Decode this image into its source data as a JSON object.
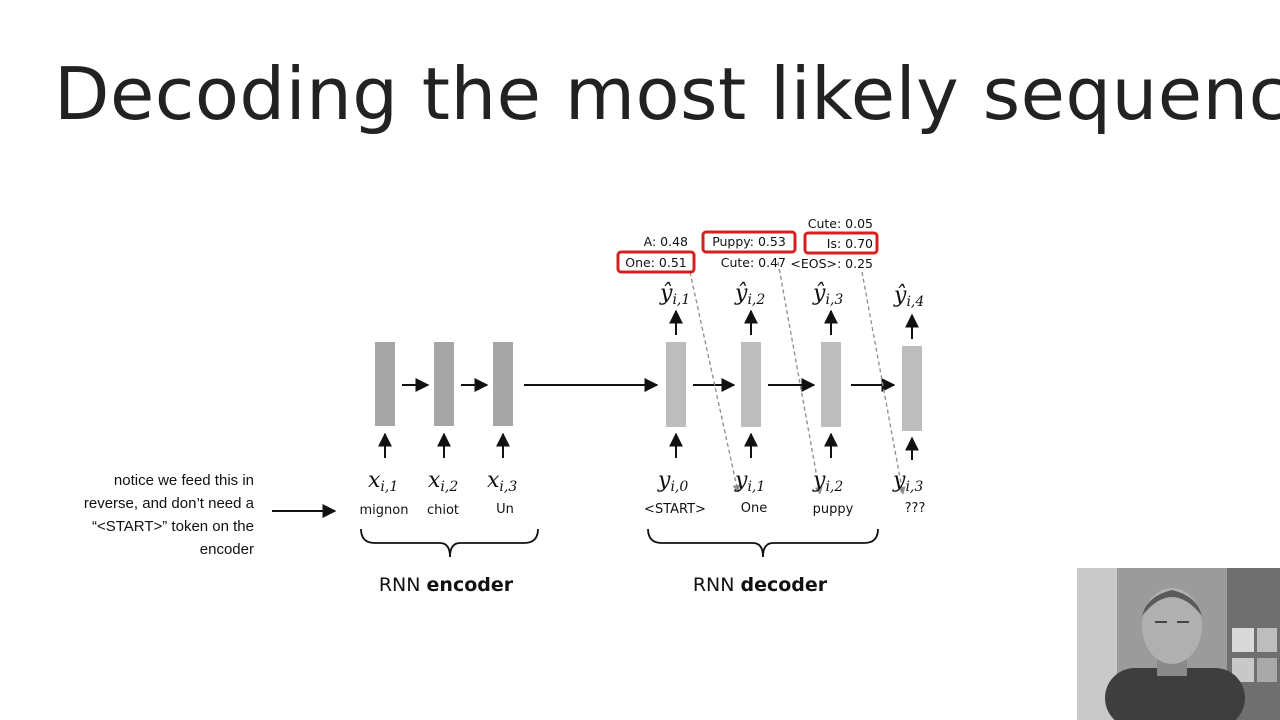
{
  "slide": {
    "title": "Decoding the most likely sequence",
    "note": "notice we feed this in reverse, and don’t need a “<START>” token on the encoder"
  },
  "encoder": {
    "label_plain": "RNN ",
    "label_bold": "encoder",
    "inputs": [
      {
        "var": "x",
        "sub": "i,1",
        "word": "mignon"
      },
      {
        "var": "x",
        "sub": "i,2",
        "word": "chiot"
      },
      {
        "var": "x",
        "sub": "i,3",
        "word": "Un"
      }
    ]
  },
  "decoder": {
    "label_plain": "RNN ",
    "label_bold": "decoder",
    "inputs": [
      {
        "var": "y",
        "sub": "i,0",
        "word": "<START>"
      },
      {
        "var": "y",
        "sub": "i,1",
        "word": "One"
      },
      {
        "var": "y",
        "sub": "i,2",
        "word": "puppy"
      },
      {
        "var": "y",
        "sub": "i,3",
        "word": "???"
      }
    ],
    "outputs": [
      {
        "var": "ŷ",
        "sub": "i,1"
      },
      {
        "var": "ŷ",
        "sub": "i,2"
      },
      {
        "var": "ŷ",
        "sub": "i,3"
      },
      {
        "var": "ŷ",
        "sub": "i,4"
      }
    ],
    "candidates": [
      {
        "text": "A: 0.48",
        "selected": false
      },
      {
        "text": "One: 0.51",
        "selected": true
      },
      {
        "text": "Puppy: 0.53",
        "selected": true
      },
      {
        "text": "Cute: 0.47",
        "selected": false
      },
      {
        "text": "Cute: 0.05",
        "selected": false
      },
      {
        "text": "Is: 0.70",
        "selected": true
      },
      {
        "text": "<EOS>: 0.25",
        "selected": false
      }
    ]
  },
  "colors": {
    "cell": "#a6a6a6",
    "cell_light": "#bdbdbd",
    "highlight": "#d62020",
    "arrow": "#111111",
    "dashed": "#8c8c8c"
  }
}
